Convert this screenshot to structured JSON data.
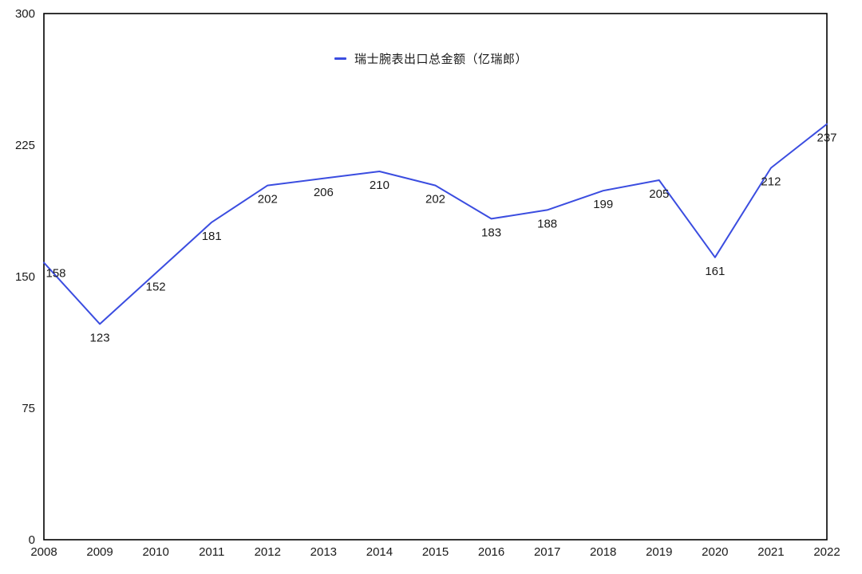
{
  "legend": {
    "label": "瑞士腕表出口总金额（亿瑞郎）"
  },
  "chart_data": {
    "type": "line",
    "categories": [
      "2008",
      "2009",
      "2010",
      "2011",
      "2012",
      "2013",
      "2014",
      "2015",
      "2016",
      "2017",
      "2018",
      "2019",
      "2020",
      "2021",
      "2022"
    ],
    "series": [
      {
        "name": "瑞士腕表出口总金额（亿瑞郎）",
        "color": "#3b4de0",
        "values": [
          158,
          123,
          152,
          181,
          202,
          206,
          210,
          202,
          183,
          188,
          199,
          205,
          161,
          212,
          237
        ]
      }
    ],
    "ylim": [
      0,
      300
    ],
    "yticks": [
      0,
      75,
      150,
      225,
      300
    ],
    "grid": false,
    "data_labels": true,
    "legend_position": "top-center",
    "axis_color": "#000000",
    "text_color": "#1a1a1a"
  }
}
